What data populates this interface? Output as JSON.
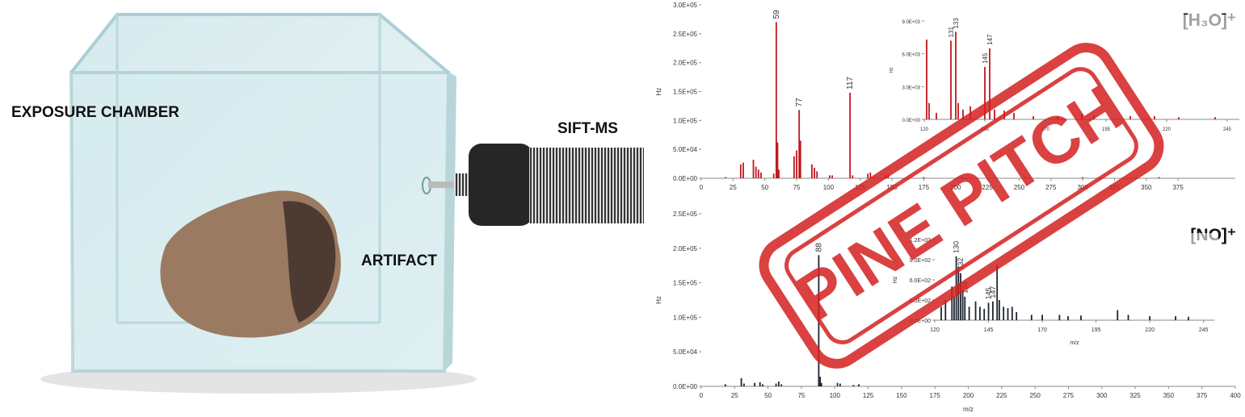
{
  "labels": {
    "chamber": "EXPOSURE CHAMBER",
    "artifact": "ARTIFACT",
    "instrument": "SIFT-MS",
    "stamp": "PINE PITCH"
  },
  "chart_data": [
    {
      "type": "bar",
      "title": "[H₃O]⁺",
      "ylabel": "Hz",
      "color": "#c0171c",
      "x": [
        19,
        31,
        33,
        41,
        43,
        45,
        47,
        57,
        59,
        60,
        61,
        73,
        75,
        77,
        78,
        87,
        89,
        91,
        101,
        103,
        117,
        119,
        131,
        133,
        145,
        147,
        175,
        205,
        255,
        300,
        360
      ],
      "values": [
        2000,
        24000,
        27000,
        32000,
        20000,
        15000,
        10000,
        8000,
        270000,
        62000,
        15000,
        38000,
        48000,
        118000,
        65000,
        24000,
        18000,
        12000,
        5000,
        5000,
        148000,
        5000,
        8000,
        10000,
        5000,
        6000,
        2000,
        2000,
        2000,
        2000,
        2000
      ],
      "annotations": [
        {
          "text": "59",
          "x": 59,
          "y": 270000
        },
        {
          "text": "77",
          "x": 77,
          "y": 118000
        },
        {
          "text": "117",
          "x": 117,
          "y": 148000
        }
      ],
      "xlim": [
        0,
        420
      ],
      "xticks": [
        0,
        25,
        50,
        75,
        100,
        125,
        150,
        175,
        200,
        225,
        250,
        275,
        300,
        325,
        350,
        375
      ],
      "ylim": [
        0,
        300000
      ],
      "yticks": [
        {
          "value": 0,
          "label": "0.0E+00"
        },
        {
          "value": 50000,
          "label": "5.0E+04"
        },
        {
          "value": 100000,
          "label": "1.0E+05"
        },
        {
          "value": 150000,
          "label": "1.5E+05"
        },
        {
          "value": 200000,
          "label": "2.0E+05"
        },
        {
          "value": 250000,
          "label": "2.5E+05"
        },
        {
          "value": 300000,
          "label": "3.0E+05"
        }
      ]
    },
    {
      "type": "bar",
      "ylabel": "Hz",
      "color": "#c0171c",
      "x": [
        121,
        122,
        125,
        131,
        133,
        134,
        136,
        139,
        145,
        147,
        149,
        153,
        157,
        165,
        175,
        185,
        190,
        205,
        215,
        225,
        240
      ],
      "values": [
        7300,
        1500,
        600,
        7200,
        8000,
        1500,
        900,
        1200,
        4800,
        6500,
        900,
        800,
        600,
        300,
        300,
        500,
        300,
        300,
        300,
        200,
        200
      ],
      "annotations": [
        {
          "text": "131",
          "x": 131,
          "y": 7200
        },
        {
          "text": "133",
          "x": 133,
          "y": 8000
        },
        {
          "text": "145",
          "x": 145,
          "y": 4800
        },
        {
          "text": "147",
          "x": 147,
          "y": 6500
        }
      ],
      "xlim": [
        120,
        250
      ],
      "xticks": [
        120,
        145,
        170,
        195,
        220,
        245
      ],
      "ylim": [
        0,
        9000
      ],
      "yticks": [
        {
          "value": 0,
          "label": "0.0E+00"
        },
        {
          "value": 3000,
          "label": "3.0E+03"
        },
        {
          "value": 6000,
          "label": "6.0E+03"
        },
        {
          "value": 9000,
          "label": "9.0E+03"
        }
      ]
    },
    {
      "type": "bar",
      "title": "[NO]⁺",
      "ylabel": "Hz",
      "xlabel": "m/z",
      "color": "#1e2430",
      "x": [
        18,
        30,
        32,
        40,
        44,
        46,
        56,
        58,
        60,
        88,
        89,
        90,
        102,
        104,
        114,
        118
      ],
      "values": [
        3000,
        12000,
        4000,
        5000,
        6000,
        3000,
        4000,
        7000,
        3000,
        190000,
        14000,
        5000,
        5000,
        4000,
        2000,
        3000
      ],
      "annotations": [
        {
          "text": "88",
          "x": 88,
          "y": 190000
        }
      ],
      "xlim": [
        0,
        400
      ],
      "xticks": [
        0,
        25,
        50,
        75,
        100,
        125,
        150,
        175,
        200,
        225,
        250,
        275,
        300,
        325,
        350,
        375,
        400
      ],
      "ylim": [
        0,
        250000
      ],
      "yticks": [
        {
          "value": 0,
          "label": "0.0E+00"
        },
        {
          "value": 50000,
          "label": "5.0E+04"
        },
        {
          "value": 100000,
          "label": "1.0E+05"
        },
        {
          "value": 150000,
          "label": "1.5E+05"
        },
        {
          "value": 200000,
          "label": "2.0E+05"
        },
        {
          "value": 250000,
          "label": "2.5E+05"
        }
      ]
    },
    {
      "type": "bar",
      "ylabel": "Hz",
      "xlabel": "m/z",
      "color": "#1e2430",
      "x": [
        123,
        125,
        128,
        129,
        130,
        131,
        132,
        133,
        134,
        136,
        139,
        141,
        143,
        145,
        147,
        149,
        150,
        152,
        154,
        156,
        158,
        165,
        170,
        178,
        182,
        188,
        205,
        210,
        220,
        232,
        238
      ],
      "values": [
        200,
        300,
        500,
        350,
        950,
        800,
        700,
        450,
        350,
        200,
        280,
        200,
        170,
        260,
        280,
        820,
        300,
        200,
        180,
        200,
        120,
        80,
        80,
        80,
        60,
        70,
        150,
        80,
        60,
        60,
        50
      ],
      "annotations": [
        {
          "text": "130",
          "x": 130,
          "y": 950
        },
        {
          "text": "132",
          "x": 132,
          "y": 700
        },
        {
          "text": "134",
          "x": 134,
          "y": 350
        },
        {
          "text": "145",
          "x": 145,
          "y": 260
        },
        {
          "text": "147",
          "x": 147,
          "y": 280
        }
      ],
      "xlim": [
        120,
        250
      ],
      "xticks": [
        120,
        145,
        170,
        195,
        220,
        245
      ],
      "ylim": [
        0,
        1200
      ],
      "yticks": [
        {
          "value": 0,
          "label": "0.0E+00"
        },
        {
          "value": 300,
          "label": "3.0E+02"
        },
        {
          "value": 600,
          "label": "6.0E+02"
        },
        {
          "value": 900,
          "label": "9.0E+02"
        },
        {
          "value": 1200,
          "label": "1.2E+03"
        }
      ]
    }
  ]
}
